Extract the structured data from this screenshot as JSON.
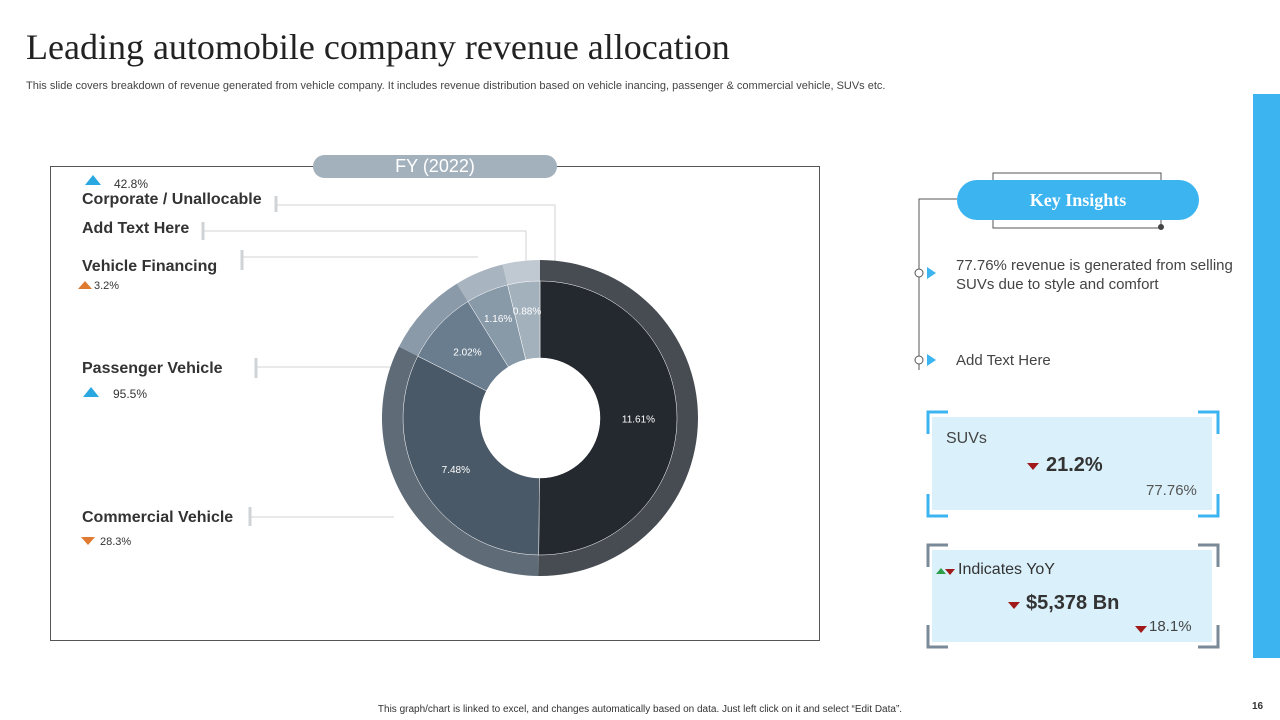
{
  "title": "Leading automobile company revenue allocation",
  "subtitle": "This slide covers breakdown of revenue generated from vehicle company. It includes revenue distribution based on vehicle   inancing, passenger & commercial vehicle, SUVs etc.",
  "chart_data": {
    "type": "pie",
    "title": "FY (2022)",
    "categories": [
      "Corporate / Unallocable",
      "Add Text Here",
      "Vehicle Financing",
      "Passenger Vehicle",
      "Commercial Vehicle"
    ],
    "outer_ring": {
      "values": [
        0.88,
        1.16,
        2.02,
        11.61,
        7.48
      ],
      "labels": [
        "0.88%",
        "1.16%",
        "2.02%",
        "11.61%",
        "7.48%"
      ]
    },
    "colors": [
      "#a3b1bd",
      "#8899a8",
      "#6a7d8f",
      "#24292f",
      "#4a5968"
    ],
    "ring_colors": [
      "#c0c9d1",
      "#a8b4bf",
      "#8a9aa9",
      "#474c52",
      "#5f6b77"
    ],
    "legend_changes": [
      {
        "category": "Corporate / Unallocable",
        "value": "42.8%",
        "direction": "up",
        "color": "#29a7e1"
      },
      {
        "category": "Vehicle Financing",
        "value": "3.2%",
        "direction": "up",
        "color": "#e07a30"
      },
      {
        "category": "Passenger Vehicle",
        "value": "95.5%",
        "direction": "up",
        "color": "#29a7e1"
      },
      {
        "category": "Commercial Vehicle",
        "value": "28.3%",
        "direction": "down",
        "color": "#e07a30"
      }
    ]
  },
  "key_insights": {
    "title": "Key Insights",
    "items": [
      "77.76% revenue  is generated from selling SUVs due to style and comfort",
      "Add Text Here"
    ]
  },
  "cards": {
    "suv": {
      "label": "SUVs",
      "value": "21.2%",
      "share": "77.76%"
    },
    "yoy": {
      "label": "Indicates YoY",
      "value": "$5,378 Bn",
      "change": "18.1%"
    }
  },
  "footer": "This graph/chart is linked to excel, and changes automatically based on data. Just left click on it and select “Edit Data”.",
  "page_number": "16",
  "accent_color": "#3cb4f0"
}
